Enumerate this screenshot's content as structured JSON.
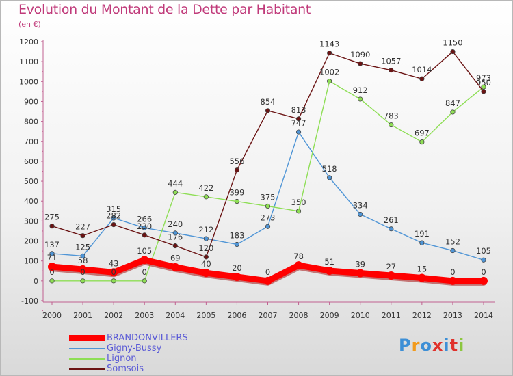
{
  "title": "Evolution du Montant de la Dette par Habitant",
  "subtitle": "(en €)",
  "logo": {
    "text": "Proxiti",
    "colors": [
      "#3d8fd6",
      "#f29a1c",
      "#3d8fd6",
      "#e0312b",
      "#3d8fd6",
      "#e0312b",
      "#8cc63f"
    ]
  },
  "chart_data": {
    "type": "line",
    "title": "Evolution du Montant de la Dette par Habitant",
    "ylabel": "(en €)",
    "xlabel": "",
    "x": [
      2000,
      2001,
      2002,
      2003,
      2004,
      2005,
      2006,
      2007,
      2008,
      2009,
      2010,
      2011,
      2012,
      2013,
      2014
    ],
    "ylim": [
      -100,
      1200
    ],
    "yticks": [
      -100,
      0,
      100,
      200,
      300,
      400,
      500,
      600,
      700,
      800,
      900,
      1000,
      1100,
      1200
    ],
    "grid": false,
    "legend_position": "bottom-left",
    "series": [
      {
        "name": "BRANDONVILLERS",
        "color": "#ff0000",
        "values": [
          71,
          58,
          43,
          105,
          69,
          40,
          20,
          0,
          78,
          51,
          39,
          27,
          15,
          0,
          0
        ]
      },
      {
        "name": "Gigny-Bussy",
        "color": "#4f95d6",
        "values": [
          137,
          125,
          315,
          266,
          240,
          212,
          183,
          273,
          747,
          518,
          334,
          261,
          191,
          152,
          105
        ]
      },
      {
        "name": "Lignon",
        "color": "#8ede55",
        "values": [
          0,
          0,
          0,
          0,
          444,
          422,
          399,
          375,
          350,
          1002,
          912,
          783,
          697,
          847,
          973
        ]
      },
      {
        "name": "Somsois",
        "color": "#6b1414",
        "values": [
          275,
          227,
          282,
          230,
          176,
          120,
          556,
          854,
          813,
          1143,
          1090,
          1057,
          1014,
          1150,
          950
        ]
      }
    ]
  }
}
